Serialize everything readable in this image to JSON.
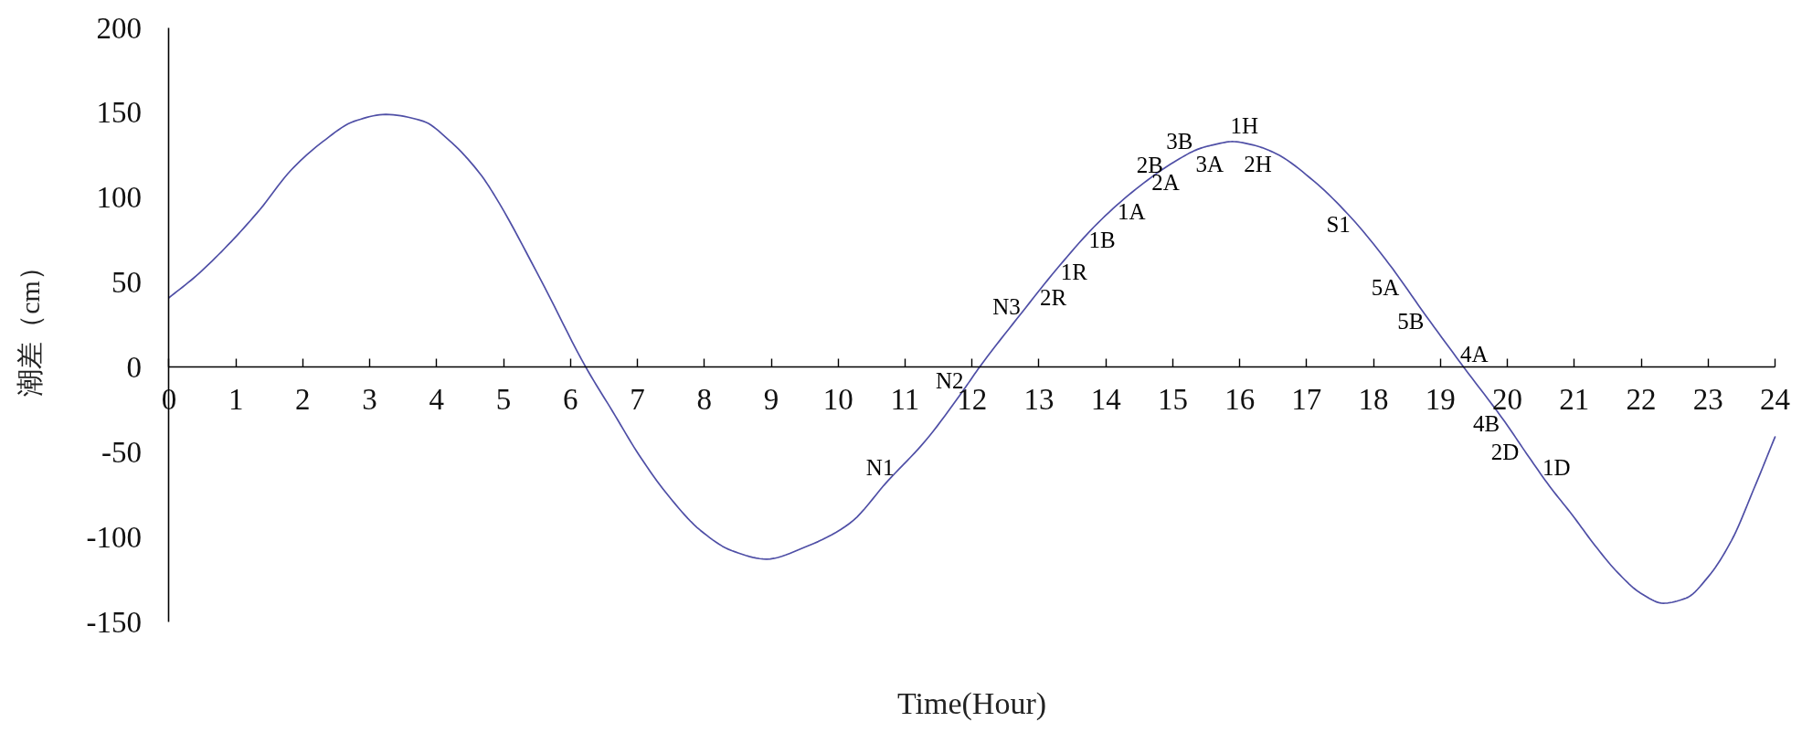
{
  "chart_data": {
    "type": "line",
    "xlabel": "Time(Hour)",
    "ylabel": "潮差（cm）",
    "x": [
      0,
      0.41,
      0.88,
      1.36,
      1.82,
      2.3,
      2.77,
      3.24,
      3.8,
      4.18,
      4.65,
      4.87,
      5.55,
      6.23,
      6.63,
      7.03,
      7.47,
      7.94,
      8.41,
      8.93,
      9.5,
      10.17,
      10.74,
      11.31,
      11.88,
      12.11,
      12.74,
      13.31,
      13.88,
      14.45,
      15.02,
      15.41,
      15.6,
      15.89,
      16.2,
      16.54,
      17.1,
      17.67,
      18.23,
      18.79,
      19.35,
      19.96,
      20.29,
      20.63,
      20.97,
      21.31,
      21.65,
      21.99,
      22.33,
      22.67,
      23.01,
      23.35,
      23.69,
      24.0
    ],
    "series": [
      {
        "color": "#4f4fa6",
        "values": [
          41,
          54,
          72,
          93,
          116,
          133,
          145,
          149,
          145,
          134,
          114,
          101,
          52,
          0,
          -26,
          -52,
          -76,
          -96,
          -108,
          -113,
          -106,
          -92,
          -67,
          -43,
          -13,
          0,
          32,
          60,
          85,
          105,
          121,
          129,
          131,
          133,
          131,
          126,
          110,
          88,
          61,
          30,
          0,
          -32,
          -51,
          -70,
          -87,
          -105,
          -121,
          -133,
          -139,
          -136,
          -123,
          -102,
          -71,
          -41
        ]
      }
    ],
    "xlim": [
      0,
      24
    ],
    "ylim": [
      -150,
      200
    ],
    "xticks": [
      0,
      1,
      2,
      3,
      4,
      5,
      6,
      7,
      8,
      9,
      10,
      11,
      12,
      13,
      14,
      15,
      16,
      17,
      18,
      19,
      20,
      21,
      22,
      23,
      24
    ],
    "yticks": [
      -150,
      -100,
      -50,
      0,
      50,
      100,
      150,
      200
    ],
    "grid": false,
    "line_style": "solid",
    "annotations": [
      {
        "text": "N1",
        "x": 10.89,
        "y": -59
      },
      {
        "text": "N2",
        "x": 11.93,
        "y": -8
      },
      {
        "text": "N3",
        "x": 12.78,
        "y": 36
      },
      {
        "text": "2R",
        "x": 12.96,
        "y": 41
      },
      {
        "text": "1R",
        "x": 13.27,
        "y": 56
      },
      {
        "text": "1B",
        "x": 13.69,
        "y": 75
      },
      {
        "text": "1A",
        "x": 14.12,
        "y": 92
      },
      {
        "text": "2B",
        "x": 14.91,
        "y": 119
      },
      {
        "text": "2A",
        "x": 14.63,
        "y": 109
      },
      {
        "text": "3B",
        "x": 15.1,
        "y": 124
      },
      {
        "text": "3A",
        "x": 15.55,
        "y": 129
      },
      {
        "text": "1H",
        "x": 16.07,
        "y": 133
      },
      {
        "text": "2H",
        "x": 16.27,
        "y": 129
      },
      {
        "text": "S1",
        "x": 17.71,
        "y": 84
      },
      {
        "text": "5A",
        "x": 18.44,
        "y": 47
      },
      {
        "text": "5B",
        "x": 18.81,
        "y": 27
      },
      {
        "text": "4A",
        "x": 19.24,
        "y": 8
      },
      {
        "text": "4B",
        "x": 19.94,
        "y": -33
      },
      {
        "text": "2D",
        "x": 20.23,
        "y": -50
      },
      {
        "text": "1D",
        "x": 20.47,
        "y": -59
      }
    ]
  }
}
